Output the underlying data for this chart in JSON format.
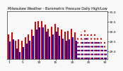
{
  "title": "Milwaukee Weather - Barometric Pressure Daily High/Low",
  "background_color": "#f8f8f8",
  "high_color": "#dd0000",
  "low_color": "#0000cc",
  "ylim": [
    28.6,
    31.05
  ],
  "yticks": [
    29.0,
    29.5,
    30.0,
    30.5,
    31.0
  ],
  "ytick_labels": [
    "29.0",
    "29.5",
    "30.0",
    "30.5",
    "31.0"
  ],
  "n": 30,
  "xtick_positions": [
    0,
    4,
    9,
    14,
    19,
    24,
    29
  ],
  "xtick_labels": [
    "1",
    "5",
    "10",
    "15",
    "20",
    "25",
    "30"
  ],
  "dotted_start": 21,
  "highs": [
    29.85,
    29.95,
    29.55,
    29.6,
    29.55,
    29.7,
    29.85,
    30.1,
    30.5,
    30.55,
    30.55,
    30.35,
    30.15,
    30.25,
    30.4,
    30.2,
    30.1,
    30.0,
    30.05,
    30.15,
    29.95,
    29.8,
    30.0,
    30.1,
    29.85,
    29.9,
    29.9,
    29.8,
    29.75,
    29.55
  ],
  "lows": [
    29.5,
    29.6,
    29.15,
    28.95,
    29.2,
    29.4,
    29.55,
    29.8,
    30.1,
    30.2,
    30.2,
    30.0,
    29.75,
    29.85,
    30.0,
    29.8,
    29.65,
    29.55,
    29.6,
    29.7,
    29.55,
    29.4,
    29.6,
    29.7,
    29.45,
    29.55,
    29.55,
    29.45,
    29.35,
    29.1
  ]
}
